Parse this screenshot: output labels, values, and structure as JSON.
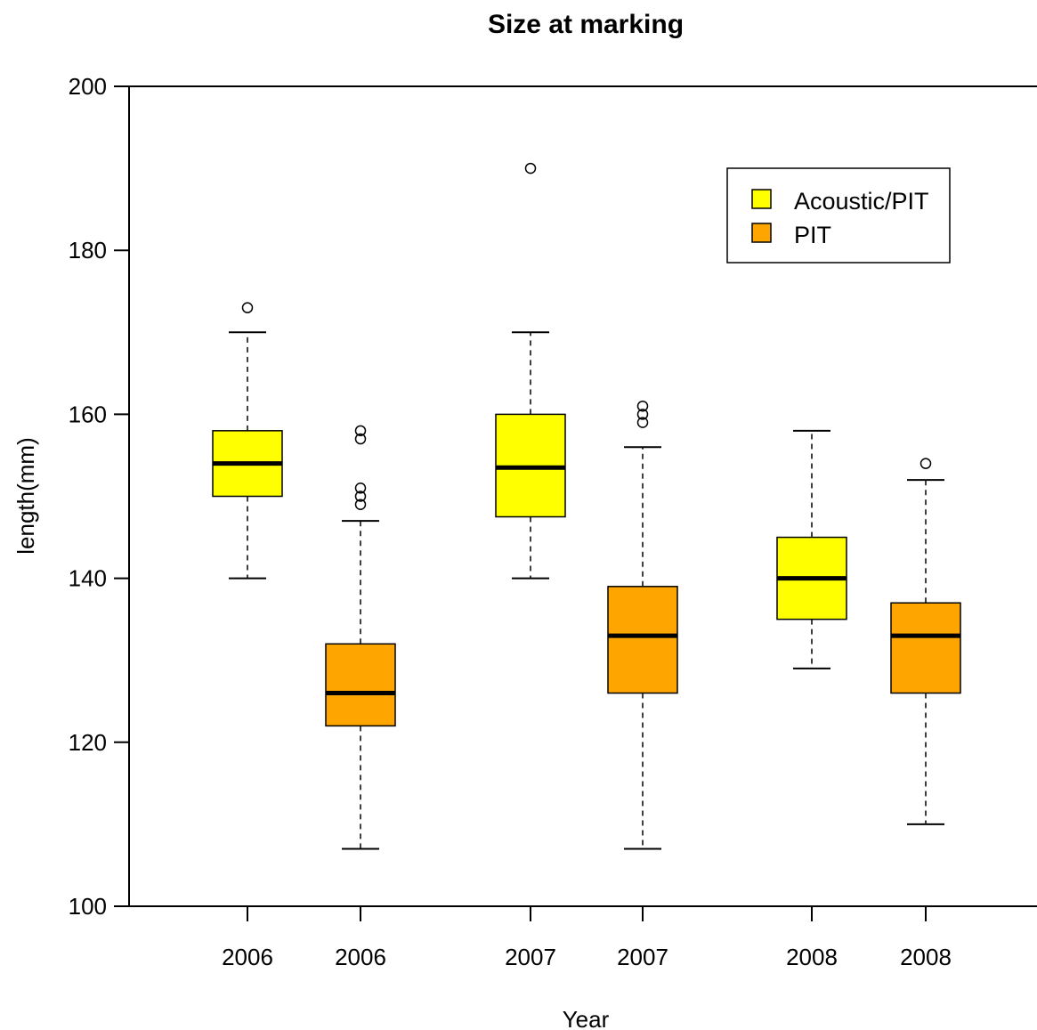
{
  "chart_data": {
    "type": "boxplot",
    "title": "Size at marking",
    "xlabel": "Year",
    "ylabel": "length(mm)",
    "ylim": [
      100,
      200
    ],
    "yticks": [
      100,
      120,
      140,
      160,
      180,
      200
    ],
    "grid": false,
    "legend": {
      "placement": "top-right",
      "entries": [
        {
          "label": "Acoustic/PIT",
          "color": "#ffff00"
        },
        {
          "label": "PIT",
          "color": "#ffa500"
        }
      ]
    },
    "boxes": [
      {
        "label": "2006",
        "group": "Acoustic/PIT",
        "whisker_low": 140,
        "q1": 150,
        "median": 154,
        "q3": 158,
        "whisker_high": 170,
        "outliers": [
          173
        ]
      },
      {
        "label": "2006",
        "group": "PIT",
        "whisker_low": 107,
        "q1": 122,
        "median": 126,
        "q3": 132,
        "whisker_high": 147,
        "outliers": [
          149,
          150,
          151,
          157,
          158
        ]
      },
      {
        "label": "2007",
        "group": "Acoustic/PIT",
        "whisker_low": 140,
        "q1": 147.5,
        "median": 153.5,
        "q3": 160,
        "whisker_high": 170,
        "outliers": [
          190
        ]
      },
      {
        "label": "2007",
        "group": "PIT",
        "whisker_low": 107,
        "q1": 126,
        "median": 133,
        "q3": 139,
        "whisker_high": 156,
        "outliers": [
          159,
          160,
          161
        ]
      },
      {
        "label": "2008",
        "group": "Acoustic/PIT",
        "whisker_low": 129,
        "q1": 135,
        "median": 140,
        "q3": 145,
        "whisker_high": 158,
        "outliers": []
      },
      {
        "label": "2008",
        "group": "PIT",
        "whisker_low": 110,
        "q1": 126,
        "median": 133,
        "q3": 137,
        "whisker_high": 152,
        "outliers": [
          154
        ]
      }
    ]
  }
}
